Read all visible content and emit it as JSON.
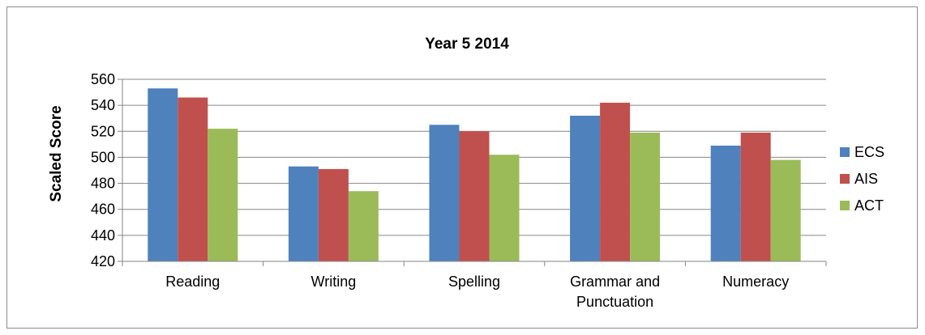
{
  "chart_data": {
    "type": "bar",
    "title": "Year 5 2014",
    "ylabel": "Scaled Score",
    "xlabel": "",
    "categories": [
      [
        "Reading"
      ],
      [
        "Writing"
      ],
      [
        "Spelling"
      ],
      [
        "Grammar and",
        "Punctuation"
      ],
      [
        "Numeracy"
      ]
    ],
    "series": [
      {
        "name": "ECS",
        "color": "#4f81bd",
        "values": [
          553,
          493,
          525,
          532,
          509
        ]
      },
      {
        "name": "AIS",
        "color": "#c0504d",
        "values": [
          546,
          491,
          520,
          542,
          519
        ]
      },
      {
        "name": "ACT",
        "color": "#9bbb59",
        "values": [
          522,
          474,
          502,
          519,
          498
        ]
      }
    ],
    "ylim": [
      420,
      560
    ],
    "yticks": [
      420,
      440,
      460,
      480,
      500,
      520,
      540,
      560
    ],
    "grid": true,
    "legend": "right"
  }
}
